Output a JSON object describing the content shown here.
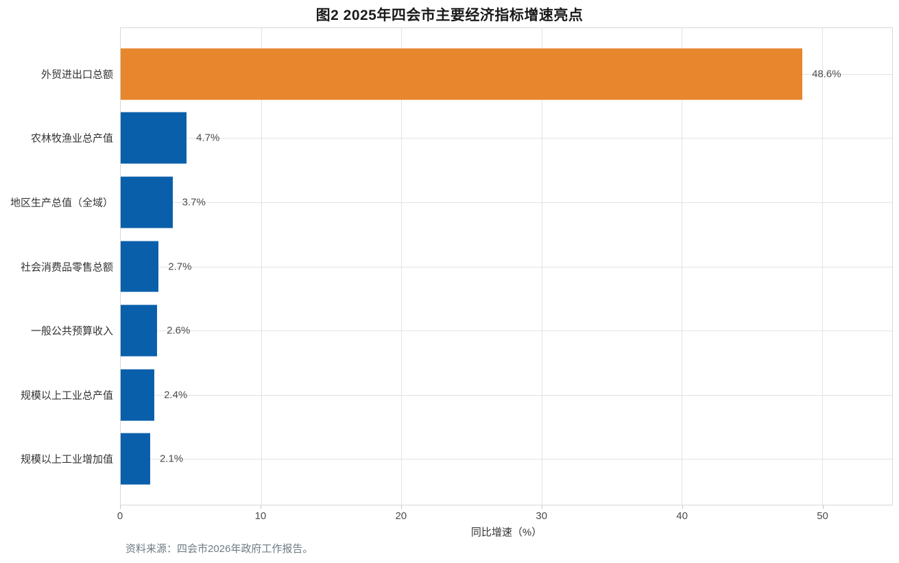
{
  "title": "图2 2025年四会市主要经济指标增速亮点",
  "source_note": "资料来源：四会市2026年政府工作报告。",
  "chart_data": {
    "type": "bar",
    "orientation": "horizontal",
    "title": "图2 2025年四会市主要经济指标增速亮点",
    "categories": [
      "外贸进出口总额",
      "农林牧渔业总产值",
      "地区生产总值（全域）",
      "社会消费品零售总额",
      "一般公共预算收入",
      "规模以上工业总产值",
      "规模以上工业增加值"
    ],
    "values": [
      48.6,
      4.7,
      3.7,
      2.7,
      2.6,
      2.4,
      2.1
    ],
    "value_labels": [
      "48.6%",
      "4.7%",
      "3.7%",
      "2.7%",
      "2.6%",
      "2.4%",
      "2.1%"
    ],
    "xlabel": "同比增速（%）",
    "ylabel": "",
    "xticks": [
      0,
      10,
      20,
      30,
      40,
      50
    ],
    "xtick_labels": [
      "0",
      "10",
      "20",
      "30",
      "40",
      "50"
    ],
    "xlim": [
      0,
      55
    ],
    "grid": true,
    "legend": false,
    "colors": {
      "highlight_bar": "#e7862c",
      "default_bar": "#0a5fab",
      "grid_line": "#e3e3e3",
      "plot_border": "#d7d7d7",
      "value_text": "#4b4b4b",
      "source_text": "#6d7b84"
    }
  }
}
